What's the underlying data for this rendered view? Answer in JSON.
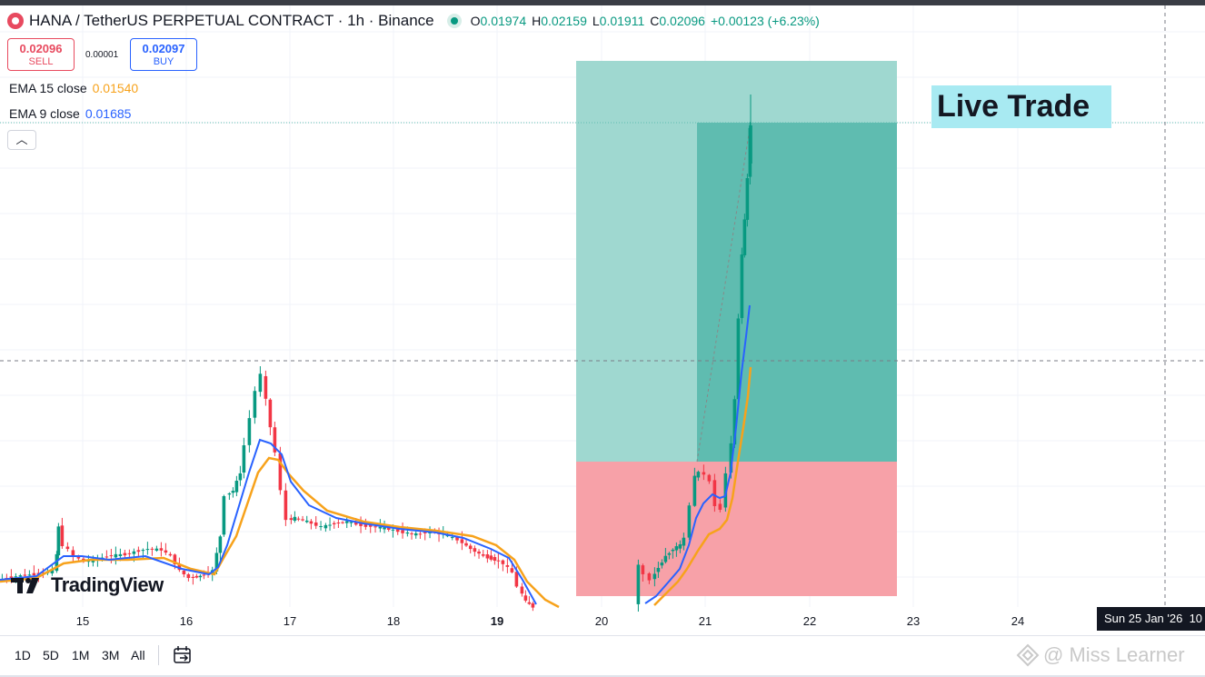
{
  "header": {
    "title": "HANA / TetherUS PERPETUAL CONTRACT · 1h · Binance",
    "ohlc": {
      "o_key": "O",
      "o": "0.01974",
      "h_key": "H",
      "h": "0.02159",
      "l_key": "L",
      "l": "0.01911",
      "c_key": "C",
      "c": "0.02096",
      "change": "+0.00123 (+6.23%)"
    }
  },
  "trade": {
    "sell_price": "0.02096",
    "sell_label": "SELL",
    "spread": "0.00001",
    "buy_price": "0.02097",
    "buy_label": "BUY"
  },
  "indicators": [
    {
      "label": "EMA 15 close",
      "value": "0.01540",
      "color": "#f7a21b"
    },
    {
      "label": "EMA 9 close",
      "value": "0.01685",
      "color": "#2962ff"
    }
  ],
  "collapse_icon": "chevron-up-icon",
  "live_label": "Live Trade",
  "x_axis": {
    "labels": [
      "15",
      "16",
      "17",
      "18",
      "19",
      "20",
      "21",
      "22",
      "23",
      "24"
    ],
    "current_date": "Sun 25 Jan '26",
    "current_extra": "10"
  },
  "range_buttons": [
    "1D",
    "5D",
    "1M",
    "3M",
    "All"
  ],
  "calendar_icon": "calendar-goto-icon",
  "watermark": "@ Miss Learner",
  "logo": "TradingView",
  "colors": {
    "up": "#089981",
    "down": "#f23645",
    "ema15": "#f7a21b",
    "ema9": "#2962ff",
    "profit_zone": "#9fd8d0",
    "profit_zone_dark": "#5fbcb0",
    "loss_zone": "#f7a1a8"
  },
  "chart_data": {
    "type": "candlestick",
    "x_tick_labels": [
      "15",
      "16",
      "17",
      "18",
      "19",
      "20",
      "21",
      "22",
      "23",
      "24"
    ],
    "series": [
      {
        "name": "EMA 15 close",
        "last": 0.0154
      },
      {
        "name": "EMA 9 close",
        "last": 0.01685
      }
    ],
    "last_candle": {
      "open": 0.01974,
      "high": 0.02159,
      "low": 0.01911,
      "close": 0.02096
    },
    "grid": true
  }
}
